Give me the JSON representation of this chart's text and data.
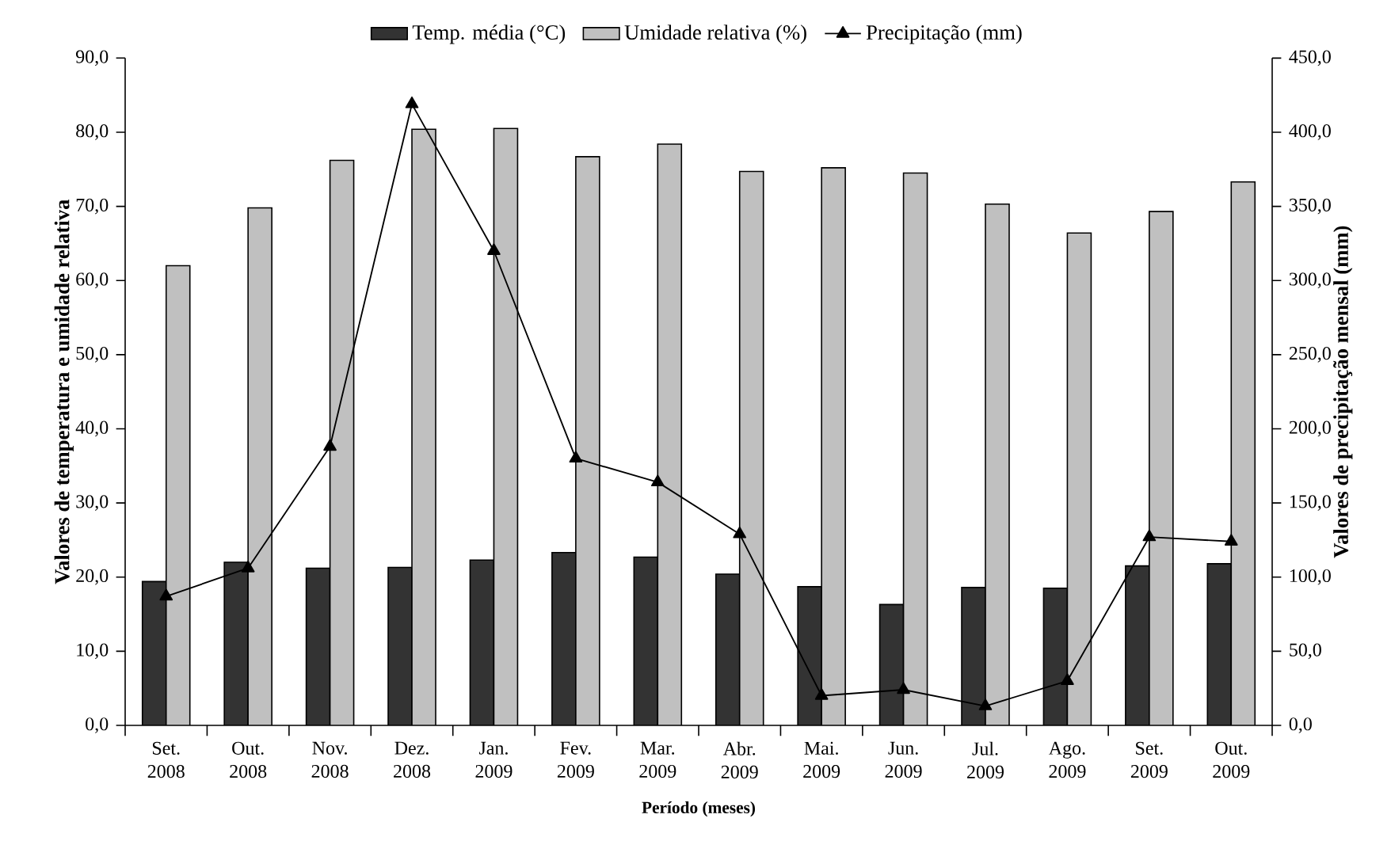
{
  "chart_data": {
    "type": "bar",
    "xlabel": "Período (meses)",
    "ylabel": "Valores de temperatura e umidade relativa",
    "y2label": "Valores de precipitação mensal (mm)",
    "categories": [
      "Set. 2008",
      "Out. 2008",
      "Nov. 2008",
      "Dez. 2008",
      "Jan. 2009",
      "Fev. 2009",
      "Mar. 2009",
      "Abr. 2009",
      "Mai. 2009",
      "Jun. 2009",
      "Jul. 2009",
      "Ago. 2009",
      "Set. 2009",
      "Out. 2009"
    ],
    "series": [
      {
        "name": "Temp. média (°C)",
        "color": "#333333",
        "values": [
          19.4,
          22.0,
          21.2,
          21.3,
          22.3,
          23.3,
          22.7,
          20.4,
          18.7,
          16.3,
          18.6,
          18.5,
          21.5,
          21.8
        ]
      },
      {
        "name": "Umidade relativa (%)",
        "color": "#c0c0c0",
        "values": [
          62.0,
          69.8,
          76.2,
          80.4,
          80.5,
          76.7,
          78.4,
          74.7,
          75.2,
          74.5,
          70.3,
          66.4,
          69.3,
          73.3
        ]
      },
      {
        "name": "Precipitação (mm)",
        "type": "line",
        "axis": "y2",
        "color": "#000000",
        "marker": "triangle",
        "line_style": "solid",
        "values": [
          87,
          106,
          188,
          419,
          320,
          180,
          164,
          129,
          20,
          24,
          13,
          30,
          127,
          124
        ]
      }
    ],
    "ylim": [
      0,
      90
    ],
    "yticks": [
      {
        "value": 0,
        "label": "0,0"
      },
      {
        "value": 10,
        "label": "10,0"
      },
      {
        "value": 20,
        "label": "20,0"
      },
      {
        "value": 30,
        "label": "30,0"
      },
      {
        "value": 40,
        "label": "40,0"
      },
      {
        "value": 50,
        "label": "50,0"
      },
      {
        "value": 60,
        "label": "60,0"
      },
      {
        "value": 70,
        "label": "70,0"
      },
      {
        "value": 80,
        "label": "80,0"
      },
      {
        "value": 90,
        "label": "90,0"
      }
    ],
    "y2lim": [
      0,
      450
    ],
    "y2ticks": [
      {
        "value": 0,
        "label": "0,0"
      },
      {
        "value": 50,
        "label": "50,0"
      },
      {
        "value": 100,
        "label": "100,0"
      },
      {
        "value": 150,
        "label": "150,0"
      },
      {
        "value": 200,
        "label": "200,0"
      },
      {
        "value": 250,
        "label": "250,0"
      },
      {
        "value": 300,
        "label": "300,0"
      },
      {
        "value": 350,
        "label": "350,0"
      },
      {
        "value": 400,
        "label": "400,0"
      },
      {
        "value": 450,
        "label": "450,0"
      }
    ],
    "legend": "top",
    "grid": false
  }
}
